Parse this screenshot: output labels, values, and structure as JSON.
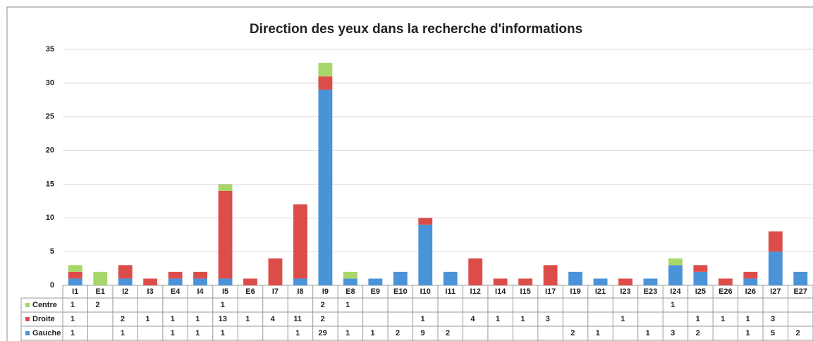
{
  "chart_data": {
    "type": "bar",
    "stacked": true,
    "title": "Direction des yeux dans la recherche d'informations",
    "categories": [
      "I1",
      "E1",
      "I2",
      "I3",
      "E4",
      "I4",
      "I5",
      "E6",
      "I7",
      "I8",
      "I9",
      "E8",
      "E9",
      "E10",
      "I10",
      "I11",
      "I12",
      "I14",
      "I15",
      "I17",
      "I19",
      "I21",
      "I23",
      "E23",
      "I24",
      "I25",
      "E26",
      "I26",
      "I27",
      "E27"
    ],
    "series": [
      {
        "name": "Centre",
        "color": "#a8d66a",
        "values": [
          1,
          2,
          null,
          null,
          null,
          null,
          1,
          null,
          null,
          null,
          2,
          1,
          null,
          null,
          null,
          null,
          null,
          null,
          null,
          null,
          null,
          null,
          null,
          null,
          1,
          null,
          null,
          null,
          null,
          null
        ]
      },
      {
        "name": "Droite",
        "color": "#dc4d4a",
        "values": [
          1,
          null,
          2,
          1,
          1,
          1,
          13,
          1,
          4,
          11,
          2,
          null,
          null,
          null,
          1,
          null,
          4,
          1,
          1,
          3,
          null,
          null,
          1,
          null,
          null,
          1,
          1,
          1,
          3,
          null
        ]
      },
      {
        "name": "Gauche",
        "color": "#4b93d8",
        "values": [
          1,
          null,
          1,
          null,
          1,
          1,
          1,
          null,
          null,
          1,
          29,
          1,
          1,
          2,
          9,
          2,
          null,
          null,
          null,
          null,
          2,
          1,
          null,
          1,
          3,
          2,
          null,
          1,
          5,
          2
        ]
      }
    ],
    "ylim": [
      0,
      35
    ],
    "yticks": [
      0,
      5,
      10,
      15,
      20,
      25,
      30,
      35
    ],
    "grid": true
  }
}
